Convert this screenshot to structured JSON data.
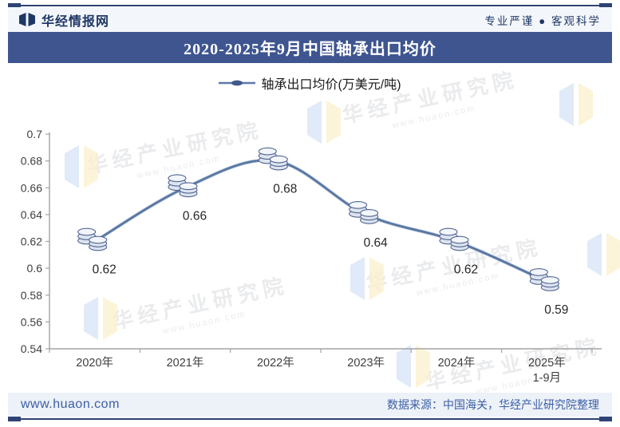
{
  "header": {
    "brand": "华经情报网",
    "slogan": "专业严谨 ● 客观科学"
  },
  "title_bar": {
    "title": "2020-2025年9月中国轴承出口均价"
  },
  "legend": {
    "label": "轴承出口均价(万美元/吨)"
  },
  "chart_data": {
    "type": "line",
    "title": "2020-2025年9月中国轴承出口均价",
    "categories": [
      "2020年",
      "2021年",
      "2022年",
      "2023年",
      "2024年",
      "2025年 1-9月"
    ],
    "series": [
      {
        "name": "轴承出口均价(万美元/吨)",
        "values": [
          0.62,
          0.66,
          0.68,
          0.64,
          0.62,
          0.59
        ]
      }
    ],
    "point_labels": [
      "0.62",
      "0.66",
      "0.68",
      "0.64",
      "0.62",
      "0.59"
    ],
    "ylim": [
      0.54,
      0.7
    ],
    "ytick_labels": [
      "0.7",
      "0.68",
      "0.66",
      "0.64",
      "0.62",
      "0.6",
      "0.58",
      "0.56",
      "0.54"
    ],
    "grid": false,
    "legend_position": "top",
    "line_color": "#56749f",
    "marker": "coin-stack-icon"
  },
  "watermark": {
    "text": "华经产业研究院",
    "subtext": "www.huaon.com"
  },
  "footer": {
    "site": "www.huaon.com",
    "source": "数据来源：中国海关，华经产业研究院整理"
  },
  "colors": {
    "accent_navy": "#2e4374",
    "title_bar_bg": "#3e5590",
    "strip_bg": "#f3f6fb",
    "line": "#56749f",
    "axis": "#a3a3a3",
    "footer_text": "#3a5fa5"
  }
}
